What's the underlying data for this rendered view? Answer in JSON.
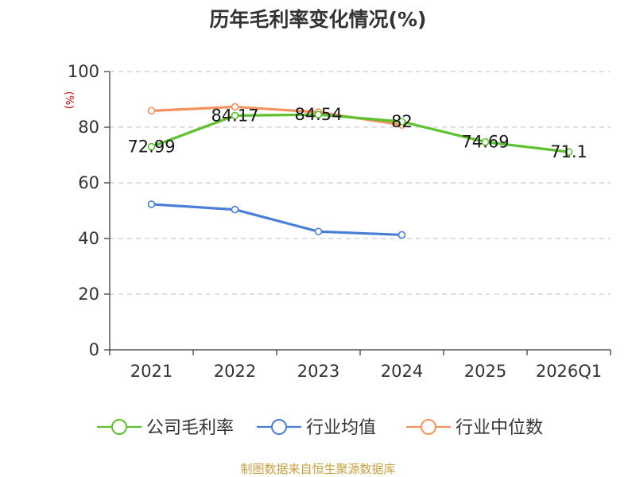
{
  "chart_data": {
    "type": "line",
    "title": "历年毛利率变化情况(%)",
    "ylabel": "(%)",
    "xlabel": "",
    "categories": [
      "2021",
      "2022",
      "2023",
      "2024",
      "2025",
      "2026Q1"
    ],
    "yticks": [
      "0",
      "20",
      "40",
      "60",
      "80",
      "100"
    ],
    "ylim": [
      0,
      100
    ],
    "grid": true,
    "legend_position": "bottom",
    "series": [
      {
        "name": "公司毛利率",
        "color": "#5cc22d",
        "values": [
          72.99,
          84.17,
          84.54,
          82,
          74.69,
          71.1
        ],
        "labels": [
          "72.99",
          "84.17",
          "84.54",
          "82",
          "74.69",
          "71.1"
        ]
      },
      {
        "name": "行业均值",
        "color": "#4a7fd6",
        "values": [
          52.3,
          50.4,
          42.5,
          41.3,
          null,
          null
        ]
      },
      {
        "name": "行业中位数",
        "color": "#f4935f",
        "values": [
          85.9,
          87.3,
          85.4,
          80.8,
          null,
          null
        ]
      }
    ]
  },
  "source": "制图数据来自恒生聚源数据库",
  "colors": {
    "ylabel": "#cc0000",
    "source": "#c8a040",
    "axis": "#333333",
    "grid": "#cccccc"
  }
}
